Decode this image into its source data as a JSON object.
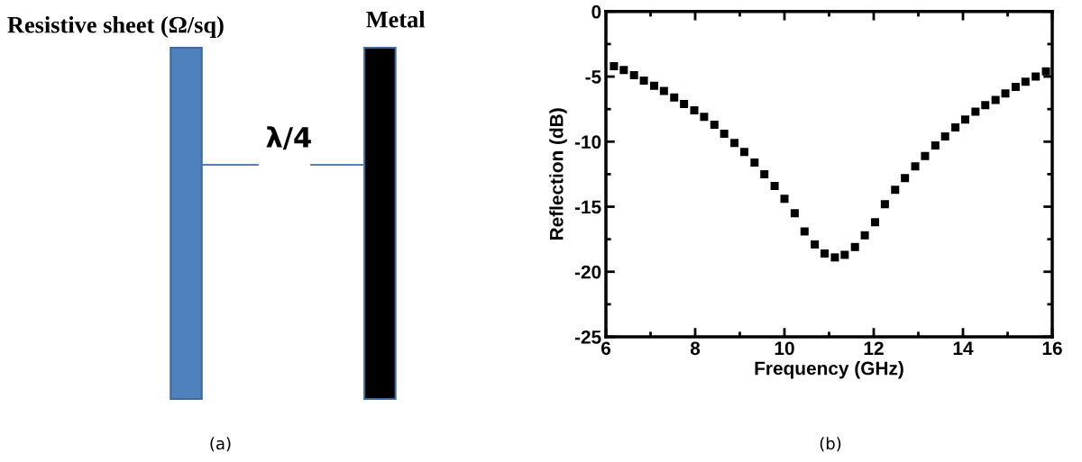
{
  "chart_data": [
    {
      "type": "other",
      "annotations": [
        "Resistive sheet (Ω/sq)",
        "Metal",
        "λ/4",
        "(a)"
      ]
    },
    {
      "type": "scatter",
      "xlabel": "Frequency (GHz)",
      "ylabel": "Reflection (dB)",
      "annotations": [
        "(b)"
      ],
      "xlim": [
        6,
        16
      ],
      "xticks": [
        6,
        8,
        10,
        12,
        14,
        16
      ],
      "ylim": [
        -25,
        0
      ],
      "yticks": [
        -25,
        -20,
        -15,
        -10,
        -5,
        0
      ],
      "marker": "square",
      "grid": false,
      "series": [
        {
          "color": "#000000",
          "x": [
            6.18,
            6.4,
            6.63,
            6.85,
            7.08,
            7.3,
            7.53,
            7.75,
            7.98,
            8.2,
            8.43,
            8.65,
            8.88,
            9.1,
            9.33,
            9.55,
            9.78,
            10.0,
            10.23,
            10.45,
            10.68,
            10.9,
            11.13,
            11.35,
            11.58,
            11.8,
            12.03,
            12.25,
            12.48,
            12.7,
            12.93,
            13.15,
            13.38,
            13.6,
            13.83,
            14.05,
            14.28,
            14.5,
            14.73,
            14.95,
            15.18,
            15.4,
            15.63,
            15.86
          ],
          "values": [
            -4.2,
            -4.5,
            -4.9,
            -5.3,
            -5.7,
            -6.1,
            -6.6,
            -7.1,
            -7.6,
            -8.1,
            -8.7,
            -9.4,
            -10.1,
            -10.8,
            -11.6,
            -12.5,
            -13.4,
            -14.4,
            -15.5,
            -16.9,
            -17.9,
            -18.6,
            -18.9,
            -18.7,
            -18.1,
            -17.2,
            -16.2,
            -14.8,
            -13.7,
            -12.8,
            -11.9,
            -11.1,
            -10.3,
            -9.6,
            -8.9,
            -8.3,
            -7.7,
            -7.2,
            -6.8,
            -6.3,
            -5.8,
            -5.4,
            -5.0,
            -4.6
          ]
        }
      ]
    }
  ]
}
